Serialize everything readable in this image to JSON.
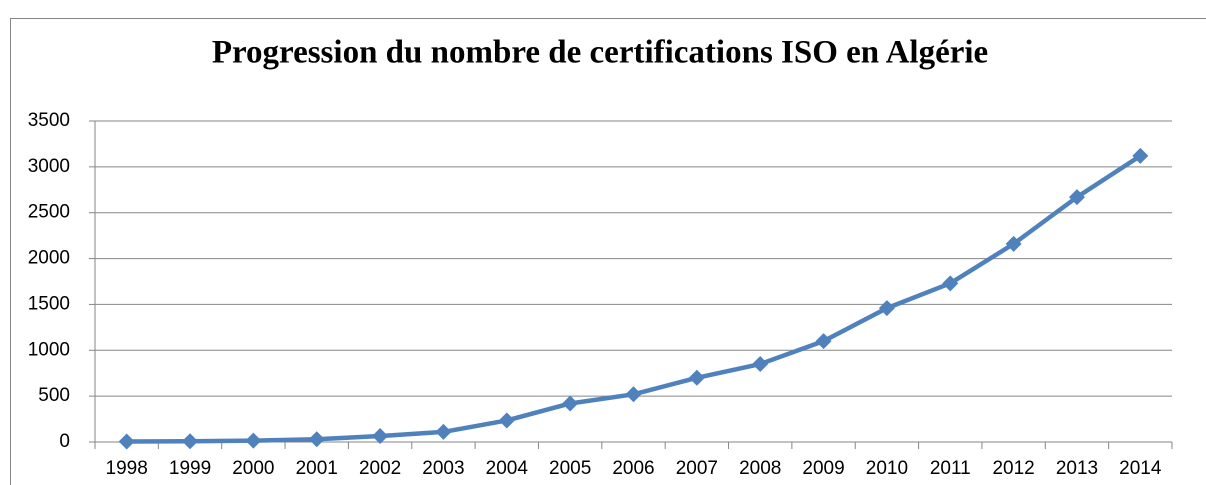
{
  "chart_data": {
    "type": "line",
    "title": "Progression du nombre de certifications ISO en Algérie",
    "categories": [
      "1998",
      "1999",
      "2000",
      "2001",
      "2002",
      "2003",
      "2004",
      "2005",
      "2006",
      "2007",
      "2008",
      "2009",
      "2010",
      "2011",
      "2012",
      "2013",
      "2014"
    ],
    "series": [
      {
        "name": "Certifications ISO",
        "color": "#4f81bd",
        "values": [
          5,
          8,
          15,
          30,
          65,
          110,
          235,
          420,
          520,
          700,
          850,
          1100,
          1460,
          1730,
          2160,
          2670,
          3120
        ]
      }
    ],
    "ylim": [
      0,
      3500
    ],
    "yticks": [
      0,
      500,
      1000,
      1500,
      2000,
      2500,
      3000,
      3500
    ],
    "grid": true
  }
}
